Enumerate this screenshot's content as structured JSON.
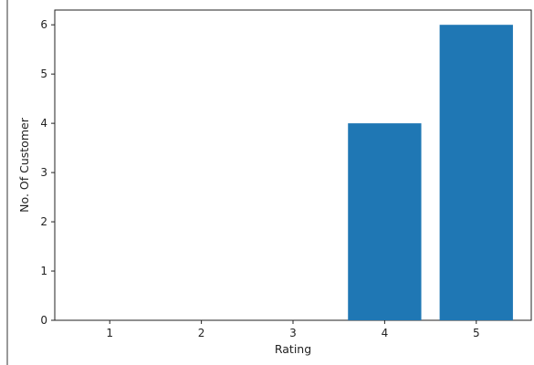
{
  "chart_data": {
    "type": "bar",
    "categories": [
      "1",
      "2",
      "3",
      "4",
      "5"
    ],
    "values": [
      0,
      0,
      0,
      4,
      6
    ],
    "title": "",
    "xlabel": "Rating",
    "ylabel": "No. Of Customer",
    "ylim": [
      0,
      6.3
    ],
    "yticks": [
      "0",
      "1",
      "2",
      "3",
      "4",
      "5",
      "6"
    ],
    "grid": false,
    "bar_color": "#1f77b4"
  }
}
